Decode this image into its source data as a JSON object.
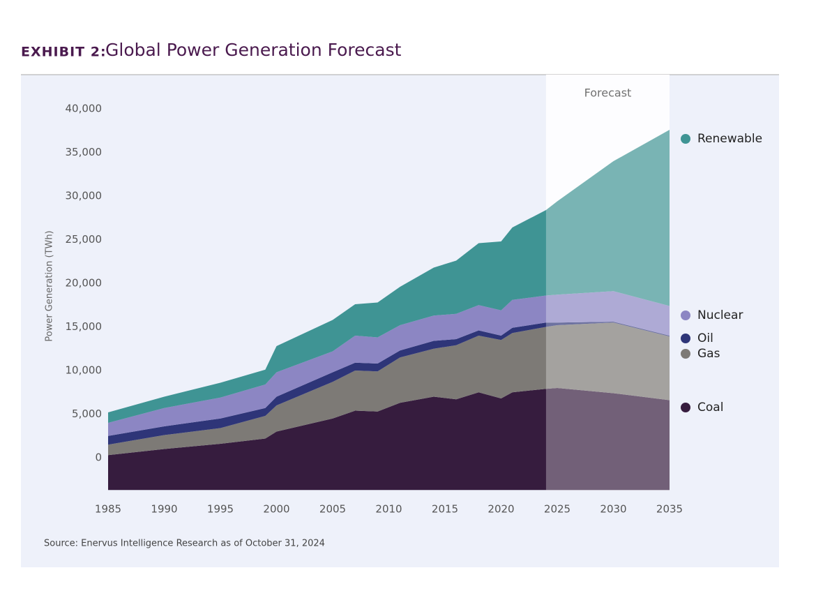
{
  "chart_data": {
    "type": "stacked_area",
    "title_prefix": "EXHIBIT 2:",
    "title": "Global Power Generation Forecast",
    "y_label": "Power Generation (TWh)",
    "source": "Source: Enervus Intelligence Research as of October 31, 2024",
    "forecast_label": "Forecast",
    "forecast_start": 2024,
    "x": [
      1985,
      1990,
      1995,
      1999,
      2000,
      2005,
      2007,
      2009,
      2011,
      2014,
      2016,
      2018,
      2020,
      2021,
      2024,
      2025,
      2030,
      2035
    ],
    "series": [
      {
        "name": "Coal",
        "color": "#361c3e",
        "values": [
          4000,
          4700,
          5300,
          5900,
          6700,
          8200,
          9100,
          9000,
          10000,
          10700,
          10400,
          11200,
          10500,
          11200,
          11600,
          11700,
          11100,
          10300
        ]
      },
      {
        "name": "Gas",
        "color": "#7d7a76",
        "values": [
          1200,
          1600,
          1800,
          2600,
          3000,
          4200,
          4600,
          4600,
          5200,
          5500,
          6200,
          6500,
          6700,
          6800,
          7100,
          7200,
          8100,
          7300
        ]
      },
      {
        "name": "Oil",
        "color": "#2e3578",
        "values": [
          1000,
          1000,
          1100,
          900,
          1000,
          1100,
          900,
          900,
          800,
          900,
          700,
          600,
          500,
          600,
          500,
          300,
          100,
          100
        ]
      },
      {
        "name": "Nuclear",
        "color": "#8c86c3",
        "values": [
          1500,
          2100,
          2400,
          2700,
          2800,
          2400,
          3100,
          3000,
          2900,
          2900,
          2900,
          2900,
          2900,
          3200,
          3100,
          3200,
          3500,
          3400
        ]
      },
      {
        "name": "Renewable",
        "color": "#3f9494",
        "values": [
          1200,
          1300,
          1700,
          1700,
          3000,
          3600,
          3600,
          4000,
          4400,
          5500,
          6100,
          7100,
          7900,
          8300,
          9800,
          10700,
          14900,
          20200
        ]
      }
    ],
    "xlim": [
      1985,
      2035
    ],
    "xticks": [
      1985,
      1990,
      1995,
      2000,
      2005,
      2010,
      2015,
      2020,
      2025,
      2030,
      2035
    ],
    "ylim": [
      -3700,
      43800
    ],
    "yticks": [
      0,
      {
        "value": 5000,
        "label": "5,000"
      },
      {
        "value": 10000,
        "label": "10,000"
      },
      {
        "value": 15000,
        "label": "15,000"
      },
      {
        "value": 20000,
        "label": "20,000"
      },
      {
        "value": 25000,
        "label": "25,000"
      },
      {
        "value": 30000,
        "label": "30,000"
      },
      {
        "value": 35000,
        "label": "35,000"
      },
      {
        "value": 40000,
        "label": "40,000"
      }
    ],
    "legend": "right"
  }
}
